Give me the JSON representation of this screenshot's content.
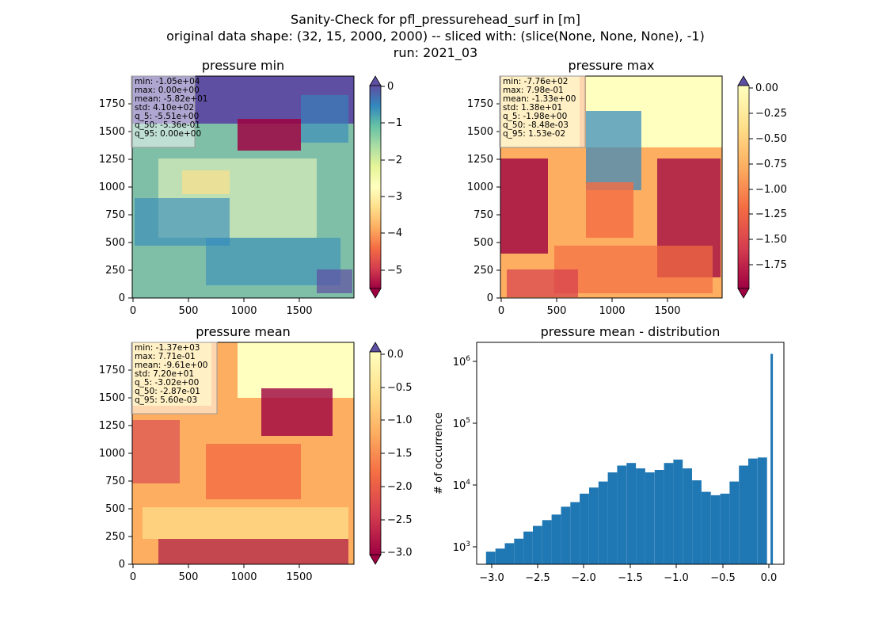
{
  "figure": {
    "title_lines": [
      "Sanity-Check for pfl_pressurehead_surf in [m]",
      "original data shape: (32, 15, 2000, 2000) -- sliced with: (slice(None, None, None), -1)",
      "run: 2021_03"
    ]
  },
  "panels": [
    {
      "id": "min",
      "title": "pressure min",
      "xticks": [
        "0",
        "500",
        "1000",
        "1500"
      ],
      "yticks": [
        "0",
        "250",
        "500",
        "750",
        "1000",
        "1250",
        "1500",
        "1750"
      ],
      "stats": [
        "min: -1.05e+04",
        "max: 0.00e+00",
        "mean: -5.82e+01",
        "std: 4.10e+02",
        "q_5: -5.51e+00",
        "q_50: -5.36e-01",
        "q_95: 0.00e+00"
      ],
      "colorbar": {
        "ticks": [
          "0",
          "−1",
          "−2",
          "−3",
          "−4",
          "−5"
        ],
        "tick_values": [
          0,
          -1,
          -2,
          -3,
          -4,
          -5
        ],
        "vmin": -5.51,
        "vmax": 0,
        "extend": "both"
      },
      "colormap": "Spectral"
    },
    {
      "id": "max",
      "title": "pressure max",
      "xticks": [
        "0",
        "500",
        "1000",
        "1500"
      ],
      "yticks": [
        "0",
        "250",
        "500",
        "750",
        "1000",
        "1250",
        "1500",
        "1750"
      ],
      "stats": [
        "min: -7.76e+02",
        "max: 7.98e-01",
        "mean: -1.33e+00",
        "std: 1.38e+01",
        "q_5: -1.98e+00",
        "q_50: -8.48e-03",
        "q_95: 1.53e-02"
      ],
      "colorbar": {
        "ticks": [
          "0.00",
          "−0.25",
          "−0.50",
          "−0.75",
          "−1.00",
          "−1.25",
          "−1.50",
          "−1.75"
        ],
        "tick_values": [
          0,
          -0.25,
          -0.5,
          -0.75,
          -1.0,
          -1.25,
          -1.5,
          -1.75
        ],
        "vmin": -1.98,
        "vmax": 0.0153,
        "extend": "both"
      },
      "colormap": "Spectral"
    },
    {
      "id": "mean",
      "title": "pressure mean",
      "xticks": [
        "0",
        "500",
        "1000",
        "1500"
      ],
      "yticks": [
        "0",
        "250",
        "500",
        "750",
        "1000",
        "1250",
        "1500",
        "1750"
      ],
      "stats": [
        "min: -1.37e+03",
        "max: 7.71e-01",
        "mean: -9.61e+00",
        "std: 7.20e+01",
        "q_5: -3.02e+00",
        "q_50: -2.87e-01",
        "q_95: 5.60e-03"
      ],
      "colorbar": {
        "ticks": [
          "0.0",
          "−0.5",
          "−1.0",
          "−1.5",
          "−2.0",
          "−2.5",
          "−3.0"
        ],
        "tick_values": [
          0,
          -0.5,
          -1.0,
          -1.5,
          -2.0,
          -2.5,
          -3.0
        ],
        "vmin": -3.02,
        "vmax": 0.0056,
        "extend": "both"
      },
      "colormap": "Spectral"
    }
  ],
  "histogram": {
    "title": "pressure mean - distribution",
    "ylabel": "# of occurrence",
    "xticks": [
      "−3.0",
      "−2.5",
      "−2.0",
      "−1.5",
      "−1.0",
      "−0.5",
      "0.0"
    ],
    "xtick_values": [
      -3.0,
      -2.5,
      -2.0,
      -1.5,
      -1.0,
      -0.5,
      0.0
    ],
    "yticks": [
      "10",
      "10",
      "10",
      "10"
    ],
    "ytick_exps": [
      "3",
      "4",
      "5",
      "6"
    ],
    "ytick_values": [
      1000,
      10000,
      100000,
      1000000
    ],
    "bar_color": "#1f77b4"
  },
  "chart_data": [
    {
      "type": "heatmap",
      "title": "pressure min",
      "xlim": [
        0,
        2000
      ],
      "ylim": [
        0,
        2000
      ],
      "colorbar_range": [
        -5.51,
        0
      ]
    },
    {
      "type": "heatmap",
      "title": "pressure max",
      "xlim": [
        0,
        2000
      ],
      "ylim": [
        0,
        2000
      ],
      "colorbar_range": [
        -1.98,
        0.0153
      ]
    },
    {
      "type": "heatmap",
      "title": "pressure mean",
      "xlim": [
        0,
        2000
      ],
      "ylim": [
        0,
        2000
      ],
      "colorbar_range": [
        -3.02,
        0.0056
      ]
    },
    {
      "type": "bar",
      "title": "pressure mean - distribution",
      "xlabel": "",
      "ylabel": "# of occurrence",
      "yscale": "log",
      "xlim": [
        -3.15,
        0.13
      ],
      "ylim": [
        500,
        2000000
      ],
      "x": [
        -3.0,
        -2.9,
        -2.8,
        -2.7,
        -2.6,
        -2.5,
        -2.4,
        -2.3,
        -2.2,
        -2.1,
        -2.0,
        -1.9,
        -1.8,
        -1.7,
        -1.6,
        -1.5,
        -1.4,
        -1.3,
        -1.2,
        -1.1,
        -1.0,
        -0.9,
        -0.8,
        -0.7,
        -0.6,
        -0.5,
        -0.4,
        -0.3,
        -0.2,
        -0.1,
        0.0
      ],
      "values": [
        800,
        900,
        1100,
        1300,
        1700,
        2100,
        2600,
        3200,
        4300,
        5100,
        7000,
        8800,
        11000,
        15500,
        20000,
        22000,
        18000,
        15500,
        17000,
        22000,
        25000,
        18000,
        11500,
        7500,
        6600,
        7000,
        11000,
        20000,
        26000,
        27000,
        1300000
      ]
    }
  ]
}
